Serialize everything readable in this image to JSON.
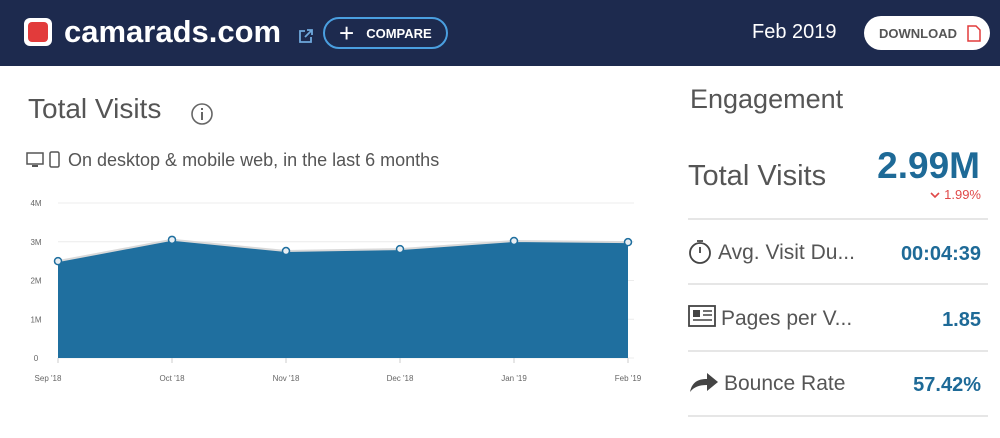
{
  "header": {
    "site": "camarads.com",
    "compare": "COMPARE",
    "date": "Feb 2019",
    "download": "DOWNLOAD"
  },
  "chart_data": {
    "type": "area",
    "title": "Total Visits",
    "subtitle": "On desktop & mobile web, in the last 6 months",
    "categories": [
      "Sep '18",
      "Oct '18",
      "Nov '18",
      "Dec '18",
      "Jan '19",
      "Feb '19"
    ],
    "values": [
      2500000,
      3050000,
      2760000,
      2810000,
      3020000,
      2990000
    ],
    "color": "#1f6f9f",
    "ylim": [
      0,
      4000000
    ],
    "yticks": [
      0,
      {
        "value": 1000000,
        "label": "1M"
      },
      {
        "value": 2000000,
        "label": "2M"
      },
      {
        "value": 3000000,
        "label": "3M"
      },
      {
        "value": 4000000,
        "label": "4M"
      }
    ],
    "grid": true
  },
  "engagement": {
    "title": "Engagement",
    "total_label": "Total Visits",
    "total_value": "2.99M",
    "change": "1.99%",
    "rows": [
      {
        "label": "Avg. Visit Du...",
        "value": "00:04:39"
      },
      {
        "label": "Pages per V...",
        "value": "1.85"
      },
      {
        "label": "Bounce Rate",
        "value": "57.42%"
      }
    ]
  }
}
